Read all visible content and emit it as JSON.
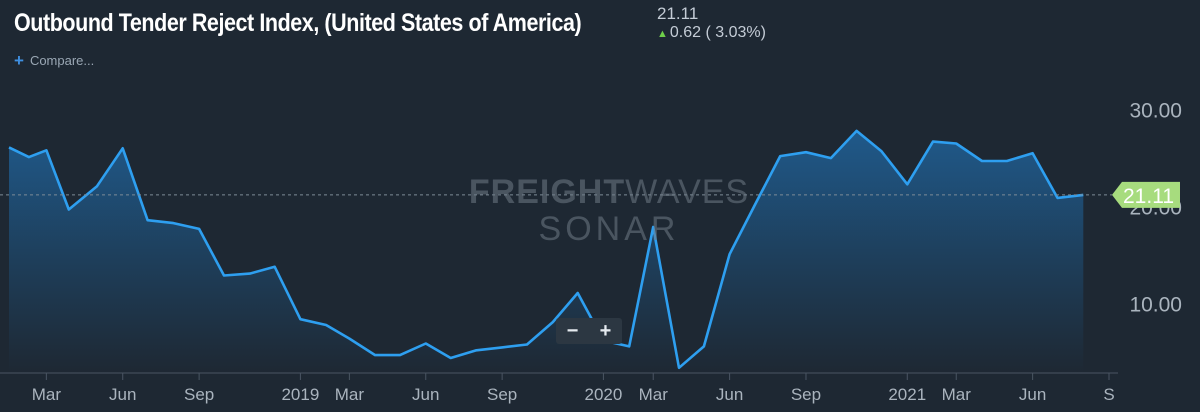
{
  "header": {
    "title": "Outbound Tender Reject Index, (United States of America)",
    "current_value": "21.11",
    "change_arrow": "▲",
    "change_text": "0.62 ( 3.03%)"
  },
  "compare_label": "Compare...",
  "zoom": {
    "minus": "−",
    "plus": "+"
  },
  "watermark": {
    "line1_bold": "FREIGHT",
    "line1_thin": "WAVES",
    "line2": "SONAR"
  },
  "colors": {
    "background": "#1e2833",
    "line": "#2e9ff0",
    "area_top": "#1f5c8f",
    "area_bottom": "#1e2833",
    "badge": "#a7dc7e",
    "axis_text": "#aab4be"
  },
  "chart_data": {
    "type": "area",
    "x_start": "2018-01-15",
    "x_end": "2021-09-01",
    "ylim": [
      2.76,
      35.0
    ],
    "y_ticks": [
      10,
      20,
      30
    ],
    "y_tick_labels": [
      "10.00",
      "20.00",
      "30.00"
    ],
    "current_value_label": "21.11",
    "current_value": 21.11,
    "x_ticks": [
      {
        "date": "2018-03-01",
        "label": "Mar"
      },
      {
        "date": "2018-06-01",
        "label": "Jun"
      },
      {
        "date": "2018-09-01",
        "label": "Sep"
      },
      {
        "date": "2019-01-01",
        "label": "2019"
      },
      {
        "date": "2019-03-01",
        "label": "Mar"
      },
      {
        "date": "2019-06-01",
        "label": "Jun"
      },
      {
        "date": "2019-09-01",
        "label": "Sep"
      },
      {
        "date": "2020-01-01",
        "label": "2020"
      },
      {
        "date": "2020-03-01",
        "label": "Mar"
      },
      {
        "date": "2020-06-01",
        "label": "Jun"
      },
      {
        "date": "2020-09-01",
        "label": "Sep"
      },
      {
        "date": "2021-01-01",
        "label": "2021"
      },
      {
        "date": "2021-03-01",
        "label": "Mar"
      },
      {
        "date": "2021-06-01",
        "label": "Jun"
      },
      {
        "date": "2021-09-01",
        "label": "S"
      }
    ],
    "series": [
      {
        "values": [
          [
            "2018-01-15",
            26.0
          ],
          [
            "2018-02-08",
            25.0
          ],
          [
            "2018-03-01",
            25.7
          ],
          [
            "2018-03-28",
            19.6
          ],
          [
            "2018-05-01",
            22.0
          ],
          [
            "2018-06-01",
            25.9
          ],
          [
            "2018-07-01",
            18.5
          ],
          [
            "2018-08-01",
            18.2
          ],
          [
            "2018-09-01",
            17.6
          ],
          [
            "2018-10-01",
            12.8
          ],
          [
            "2018-11-01",
            13.0
          ],
          [
            "2018-12-01",
            13.7
          ],
          [
            "2019-01-01",
            8.3
          ],
          [
            "2019-02-01",
            7.7
          ],
          [
            "2019-03-01",
            6.3
          ],
          [
            "2019-04-01",
            4.6
          ],
          [
            "2019-05-01",
            4.6
          ],
          [
            "2019-06-01",
            5.8
          ],
          [
            "2019-07-01",
            4.3
          ],
          [
            "2019-08-01",
            5.1
          ],
          [
            "2019-09-01",
            5.4
          ],
          [
            "2019-10-01",
            5.7
          ],
          [
            "2019-11-01",
            8.0
          ],
          [
            "2019-12-01",
            11.0
          ],
          [
            "2020-01-01",
            6.1
          ],
          [
            "2020-02-01",
            5.5
          ],
          [
            "2020-03-01",
            17.8
          ],
          [
            "2020-04-01",
            3.3
          ],
          [
            "2020-05-01",
            5.5
          ],
          [
            "2020-06-01",
            15.0
          ],
          [
            "2020-07-01",
            20.0
          ],
          [
            "2020-08-01",
            25.1
          ],
          [
            "2020-09-01",
            25.5
          ],
          [
            "2020-10-01",
            24.9
          ],
          [
            "2020-11-01",
            27.7
          ],
          [
            "2020-12-01",
            25.6
          ],
          [
            "2021-01-01",
            22.2
          ],
          [
            "2021-02-01",
            26.6
          ],
          [
            "2021-03-01",
            26.4
          ],
          [
            "2021-04-01",
            24.6
          ],
          [
            "2021-05-01",
            24.6
          ],
          [
            "2021-06-01",
            25.4
          ],
          [
            "2021-07-01",
            20.8
          ],
          [
            "2021-08-01",
            21.11
          ]
        ]
      }
    ]
  }
}
